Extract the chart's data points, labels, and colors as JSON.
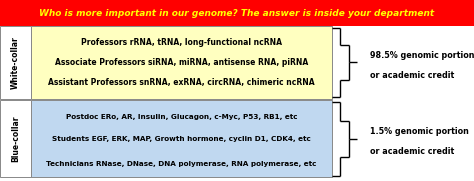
{
  "title": "Who is more important in our genome? The answer is inside your department",
  "title_bg": "#ff0000",
  "title_color": "#ffff00",
  "white_collar_label": "White-collar",
  "blue_collar_label": "Blue-collar",
  "white_box_color": "#ffffc0",
  "blue_box_color": "#c0d8f0",
  "white_lines": [
    "Professors rRNA, tRNA, long-functional ncRNA",
    "Associate Professors siRNA, miRNA, antisense RNA, piRNA",
    "Assistant Professors snRNA, exRNA, circRNA, chimeric ncRNA"
  ],
  "blue_lines": [
    "Postdoc ERo, AR, Insulin, Glucagon, c-Myc, P53, RB1, etc",
    "Students EGF, ERK, MAP, Growth hormone, cyclin D1, CDK4, etc",
    "Technicians RNase, DNase, DNA polymerase, RNA polymerase, etc"
  ],
  "white_credit_line1": "98.5% genomic portion",
  "white_credit_line2": "or academic credit",
  "blue_credit_line1": "1.5% genomic portion",
  "blue_credit_line2": "or academic credit",
  "text_color": "#000000",
  "fig_width": 4.74,
  "fig_height": 1.81,
  "dpi": 100
}
